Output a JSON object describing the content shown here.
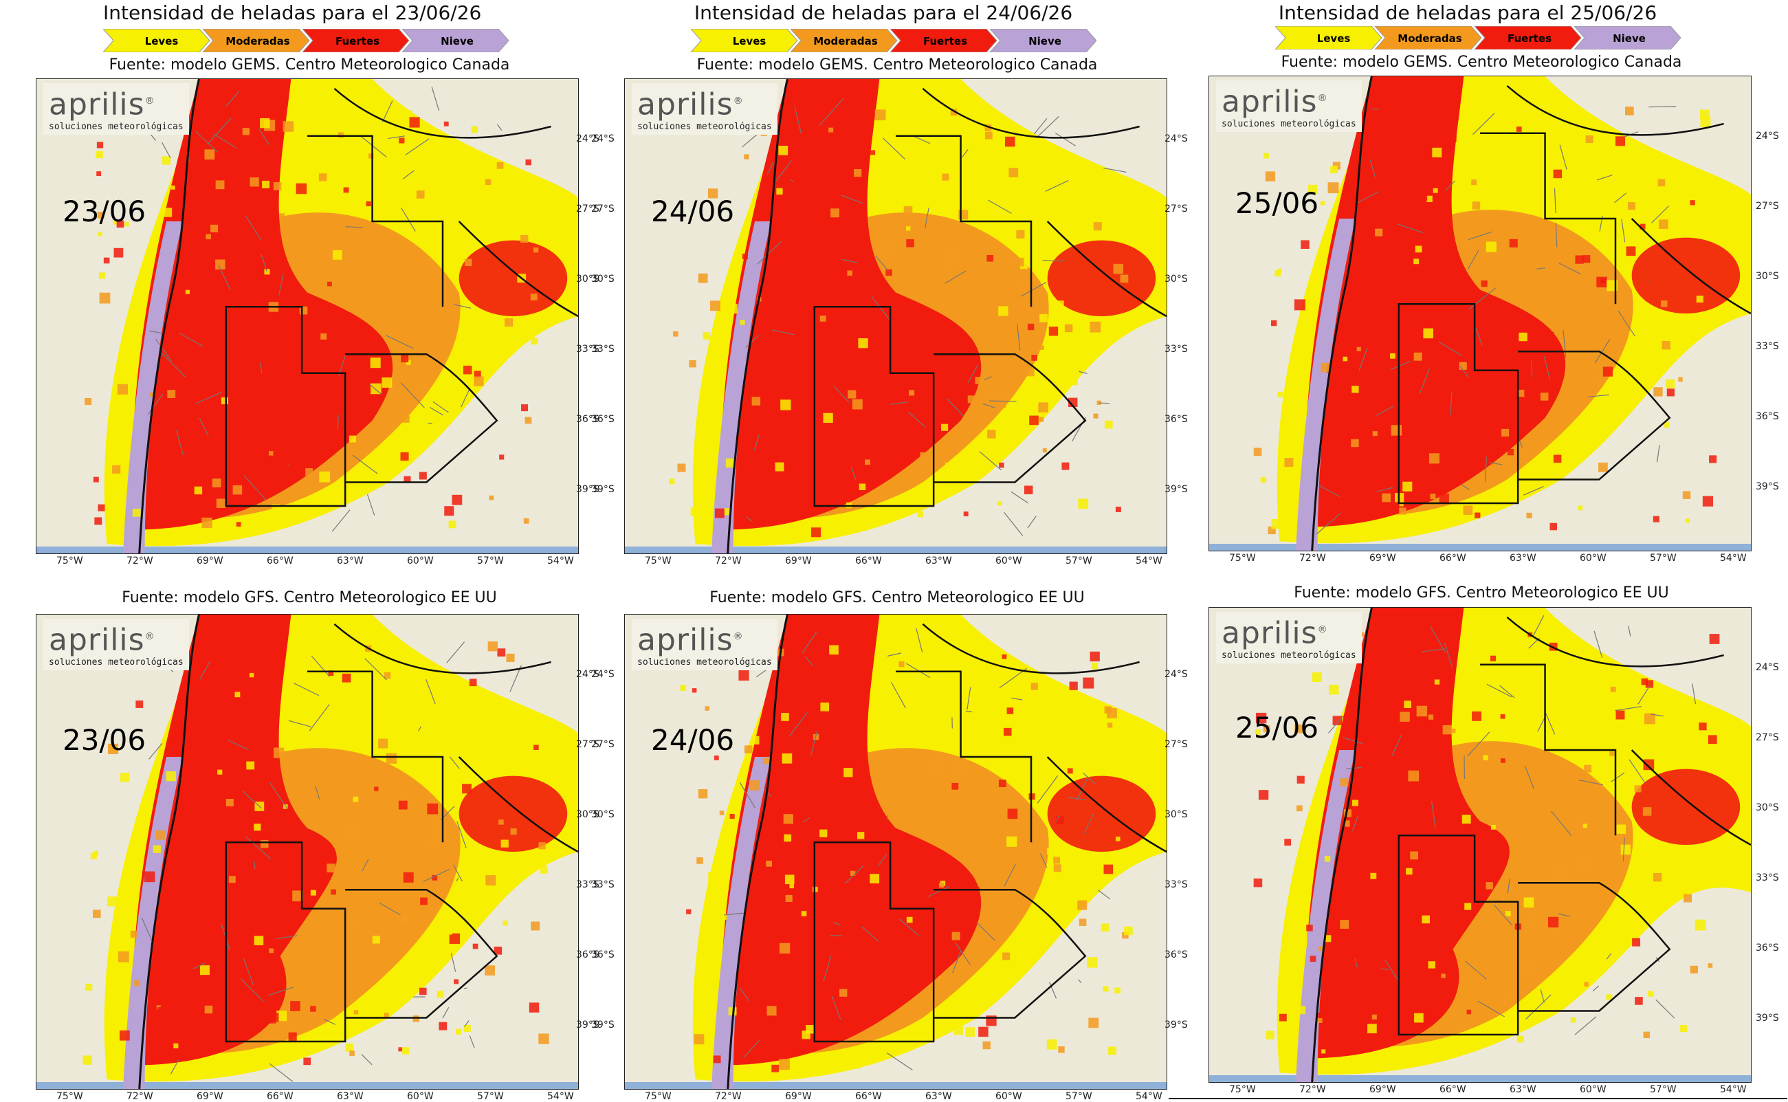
{
  "columns": [
    {
      "title": "Intensidad de heladas para el 23/06/26",
      "date": "23/06"
    },
    {
      "title": "Intensidad de heladas para el 24/06/26",
      "date": "24/06"
    },
    {
      "title": "Intensidad de heladas para el 25/06/26",
      "date": "25/06"
    }
  ],
  "legend": [
    {
      "label": "Leves",
      "color": "#f7f000"
    },
    {
      "label": "Moderadas",
      "color": "#f39a1e"
    },
    {
      "label": "Fuertes",
      "color": "#f11c0e"
    },
    {
      "label": "Nieve",
      "color": "#b9a2d6"
    }
  ],
  "rows": [
    {
      "source": "Fuente: modelo GEMS. Centro Meteorologico Canada"
    },
    {
      "source": "Fuente: modelo GFS. Centro Meteorologico EE UU"
    }
  ],
  "logo": {
    "brand": "aprilis",
    "mark": "®",
    "tagline": "soluciones meteorológicas"
  },
  "lat_labels": [
    "24°S",
    "27°S",
    "30°S",
    "33°S",
    "36°S",
    "39°S"
  ],
  "lon_labels": [
    "75°W",
    "72°W",
    "69°W",
    "66°W",
    "63°W",
    "60°W",
    "57°W",
    "54°W"
  ],
  "colors": {
    "land": "#ece9d8",
    "leves": "#f7f000",
    "moderadas": "#f39a1e",
    "fuertes": "#f11c0e",
    "nieve": "#b9a2d6",
    "border": "#111111"
  }
}
